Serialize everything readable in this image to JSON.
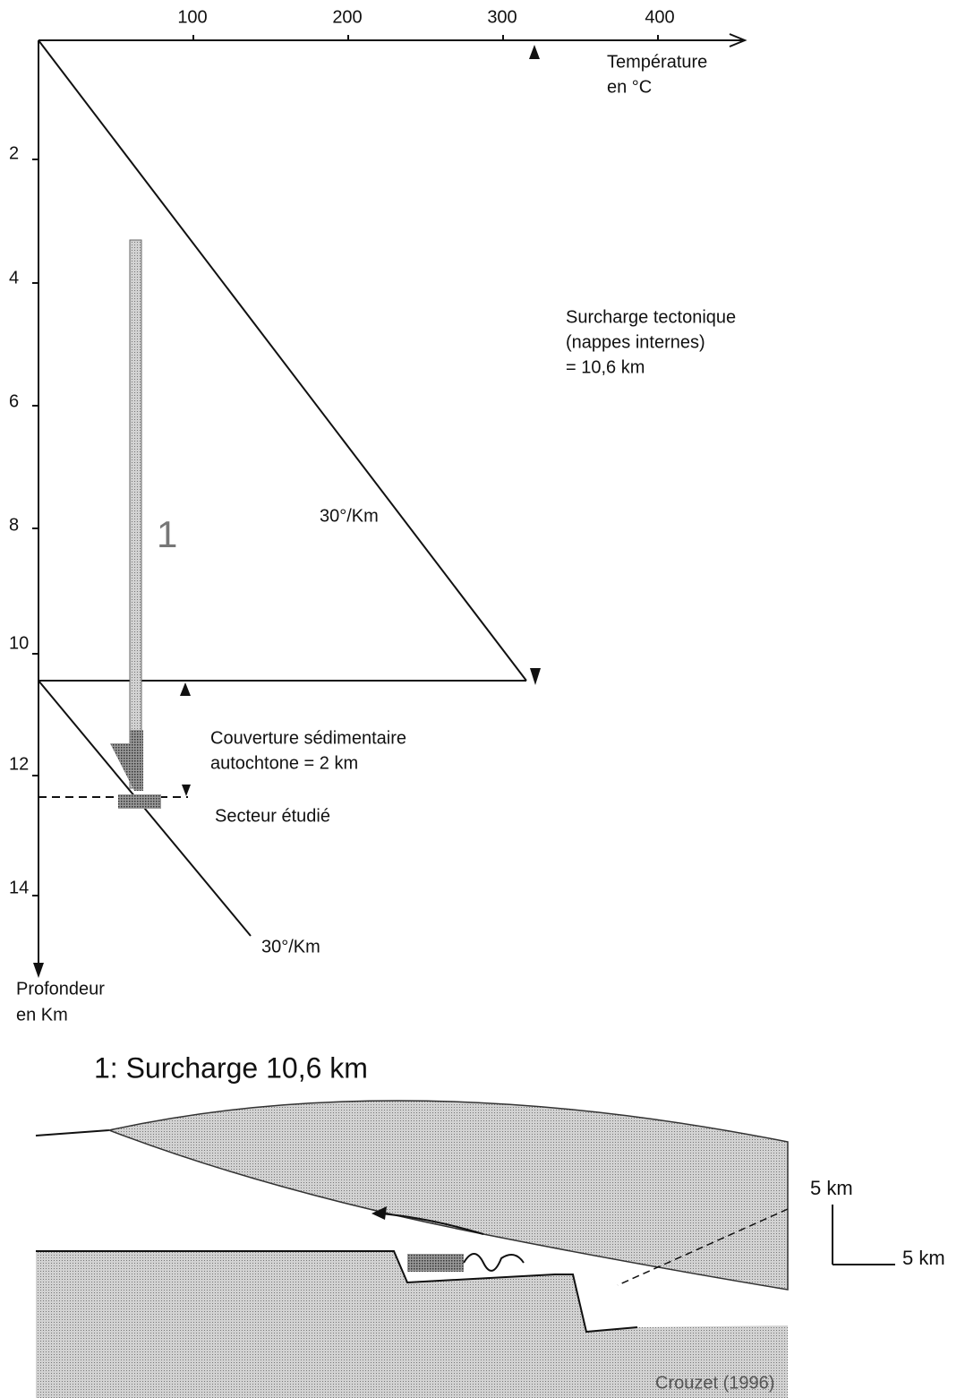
{
  "temperature_axis": {
    "ticks": [
      "100",
      "200",
      "300",
      "400"
    ],
    "label": [
      "Température",
      "en °C"
    ]
  },
  "depth_axis": {
    "ticks": [
      "2",
      "4",
      "6",
      "8",
      "10",
      "12",
      "14"
    ],
    "label": [
      "Profondeur",
      "en Km"
    ]
  },
  "annotations": {
    "path_number": "1",
    "gradient_upper": "30°/Km",
    "gradient_lower": "30°/Km",
    "overload": [
      "Surcharge tectonique",
      "(nappes internes)",
      "= 10,6 km"
    ],
    "cover": [
      "Couverture sédimentaire",
      "autochtone = 2 km"
    ],
    "sector": "Secteur étudié"
  },
  "section": {
    "title": "1: Surcharge 10,6 km",
    "scale_vertical": "5 km",
    "scale_horizontal": "5 km",
    "credit": "Crouzet (1996)"
  }
}
